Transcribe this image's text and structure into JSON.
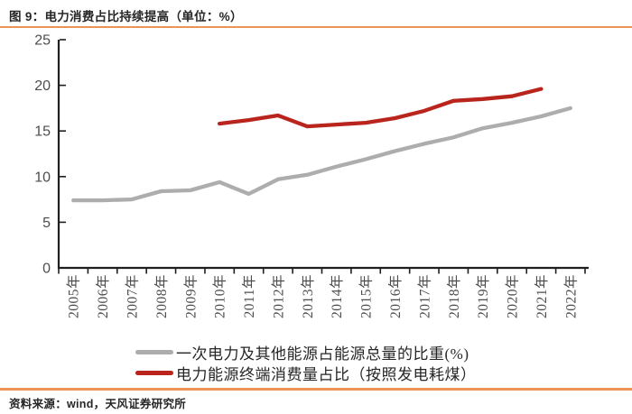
{
  "header": {
    "title": "图 9：电力消费占比持续提高（单位：%）"
  },
  "footer": {
    "source": "资料来源：wind，天风证券研究所"
  },
  "colors": {
    "accent_orange": "#EC9455",
    "axis": "#1f1f1f",
    "tick_label": "#4d4d4d",
    "series_grey": "#ADADAD",
    "series_red": "#B9251C",
    "text_dark": "#262626"
  },
  "chart_data": {
    "type": "line",
    "title": "图 9：电力消费占比持续提高（单位：%）",
    "xlabel": "",
    "ylabel": "",
    "unit": "%",
    "grid": false,
    "legend_position": "bottom",
    "ylim": [
      0,
      25
    ],
    "yticks": [
      0,
      5,
      10,
      15,
      20,
      25
    ],
    "categories": [
      "2005年",
      "2006年",
      "2007年",
      "2008年",
      "2009年",
      "2010年",
      "2011年",
      "2012年",
      "2013年",
      "2014年",
      "2015年",
      "2016年",
      "2017年",
      "2018年",
      "2019年",
      "2020年",
      "2021年",
      "2022年"
    ],
    "series": [
      {
        "name": "一次电力及其他能源占能源总量的比重(%)",
        "color_key": "series_grey",
        "start_index": 0,
        "values": [
          7.4,
          7.4,
          7.5,
          8.4,
          8.5,
          9.4,
          8.1,
          9.7,
          10.2,
          11.1,
          11.9,
          12.8,
          13.6,
          14.3,
          15.3,
          15.9,
          16.6,
          17.5
        ]
      },
      {
        "name": "电力能源终端消费量占比（按照发电耗煤）",
        "color_key": "series_red",
        "start_index": 5,
        "values": [
          15.8,
          16.2,
          16.7,
          15.5,
          15.7,
          15.9,
          16.4,
          17.2,
          18.3,
          18.5,
          18.8,
          19.6
        ]
      }
    ]
  }
}
